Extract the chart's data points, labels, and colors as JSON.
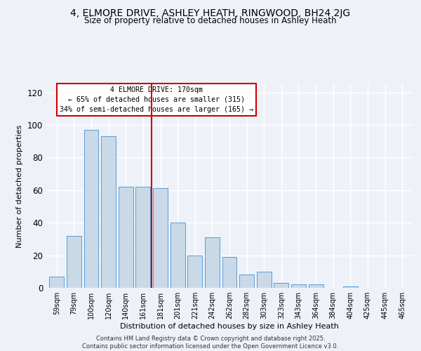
{
  "title1": "4, ELMORE DRIVE, ASHLEY HEATH, RINGWOOD, BH24 2JG",
  "title2": "Size of property relative to detached houses in Ashley Heath",
  "xlabel": "Distribution of detached houses by size in Ashley Heath",
  "ylabel": "Number of detached properties",
  "categories": [
    "59sqm",
    "79sqm",
    "100sqm",
    "120sqm",
    "140sqm",
    "161sqm",
    "181sqm",
    "201sqm",
    "221sqm",
    "242sqm",
    "262sqm",
    "282sqm",
    "303sqm",
    "323sqm",
    "343sqm",
    "364sqm",
    "384sqm",
    "404sqm",
    "425sqm",
    "445sqm",
    "465sqm"
  ],
  "values": [
    7,
    32,
    97,
    93,
    62,
    62,
    61,
    40,
    20,
    31,
    19,
    8,
    10,
    3,
    2,
    2,
    0,
    1,
    0,
    0,
    0
  ],
  "bar_color": "#c9d9e8",
  "bar_edge_color": "#5b9bd5",
  "vline_x": 5.5,
  "vline_color": "#cc0000",
  "annotation_title": "4 ELMORE DRIVE: 170sqm",
  "annotation_line1": "← 65% of detached houses are smaller (315)",
  "annotation_line2": "34% of semi-detached houses are larger (165) →",
  "annotation_box_color": "#ffffff",
  "annotation_box_edge": "#cc0000",
  "footer": "Contains HM Land Registry data © Crown copyright and database right 2025.\nContains public sector information licensed under the Open Government Licence v3.0.",
  "ylim": [
    0,
    125
  ],
  "yticks": [
    0,
    20,
    40,
    60,
    80,
    100,
    120
  ],
  "background_color": "#eef2f8"
}
